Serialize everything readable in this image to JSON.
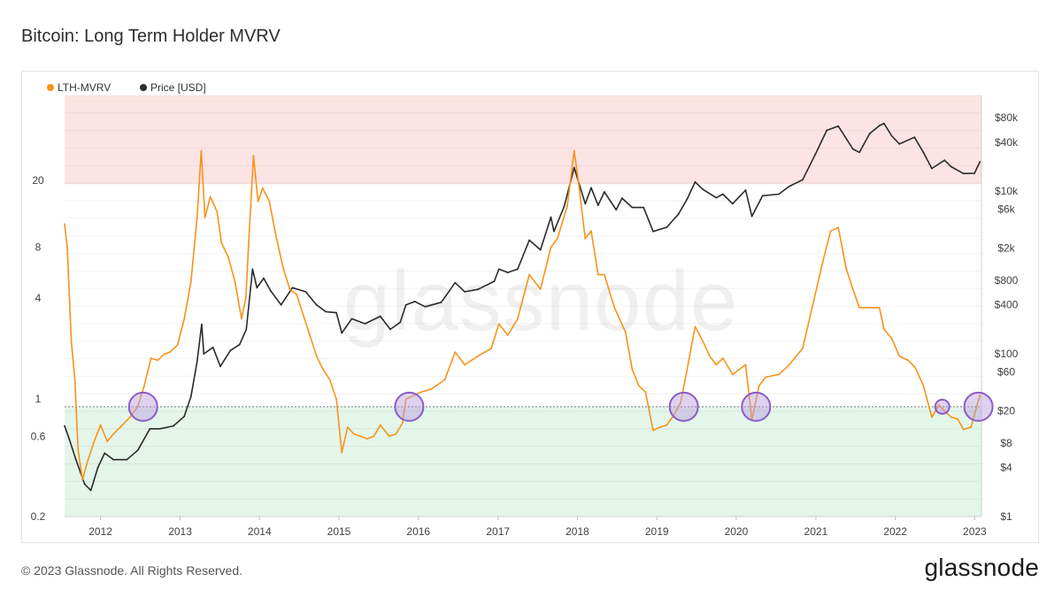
{
  "title": "Bitcoin: Long Term Holder MVRV",
  "footer": {
    "copyright": "© 2023 Glassnode. All Rights Reserved.",
    "logo": "glassnode"
  },
  "watermark": "glassnode",
  "colors": {
    "lth_mvrv": "#f7931a",
    "price": "#2b2b2b",
    "band_top": "#fde4e4",
    "band_bottom": "#e4f5ea",
    "marker": "#8a5cc7",
    "marker_fill": "#b89be0"
  },
  "chart_data": {
    "type": "line",
    "title": "Bitcoin: Long Term Holder MVRV",
    "legend": [
      "LTH-MVRV",
      "Price [USD]"
    ],
    "legend_position": "top-left",
    "x_ticks": [
      "2012",
      "2013",
      "2014",
      "2015",
      "2016",
      "2017",
      "2018",
      "2019",
      "2020",
      "2021",
      "2022",
      "2023"
    ],
    "xlim": [
      "2011-07-20",
      "2023-02-01"
    ],
    "left_axis": {
      "scale": "log",
      "ticks": [
        "0.2",
        "0.6",
        "1",
        "4",
        "8",
        "20"
      ],
      "tick_values": [
        0.2,
        0.6,
        1,
        4,
        8,
        20
      ],
      "ylim": [
        0.2,
        64
      ]
    },
    "right_axis": {
      "scale": "log",
      "ticks": [
        "$1",
        "$4",
        "$8",
        "$20",
        "$60",
        "$100",
        "$400",
        "$800",
        "$2k",
        "$6k",
        "$10k",
        "$40k",
        "$80k"
      ],
      "tick_values": [
        1,
        4,
        8,
        20,
        60,
        100,
        400,
        800,
        2000,
        6000,
        10000,
        40000,
        80000
      ],
      "ylim": [
        1,
        150000
      ]
    },
    "bands": [
      {
        "name": "upper",
        "from": 19,
        "to": 64
      },
      {
        "name": "lower",
        "from": 0.2,
        "to": 0.9
      }
    ],
    "reference_line": 0.9,
    "series": [
      {
        "name": "LTH-MVRV",
        "axis": "left",
        "points": [
          [
            "2011-07-20",
            11
          ],
          [
            "2011-08-01",
            8
          ],
          [
            "2011-08-20",
            2.2
          ],
          [
            "2011-09-05",
            1.3
          ],
          [
            "2011-09-20",
            0.5
          ],
          [
            "2011-10-10",
            0.33
          ],
          [
            "2011-11-01",
            0.42
          ],
          [
            "2011-12-01",
            0.55
          ],
          [
            "2012-01-01",
            0.7
          ],
          [
            "2012-02-01",
            0.56
          ],
          [
            "2012-03-01",
            0.62
          ],
          [
            "2012-04-01",
            0.68
          ],
          [
            "2012-05-15",
            0.78
          ],
          [
            "2012-06-20",
            0.9
          ],
          [
            "2012-07-20",
            1.2
          ],
          [
            "2012-08-20",
            1.75
          ],
          [
            "2012-09-20",
            1.7
          ],
          [
            "2012-10-20",
            1.85
          ],
          [
            "2012-11-15",
            1.9
          ],
          [
            "2012-12-20",
            2.1
          ],
          [
            "2013-01-20",
            3.0
          ],
          [
            "2013-02-20",
            5.0
          ],
          [
            "2013-03-20",
            12
          ],
          [
            "2013-04-08",
            30
          ],
          [
            "2013-04-25",
            12
          ],
          [
            "2013-05-20",
            16
          ],
          [
            "2013-06-20",
            13
          ],
          [
            "2013-07-10",
            8.5
          ],
          [
            "2013-08-10",
            7.0
          ],
          [
            "2013-09-10",
            5.0
          ],
          [
            "2013-10-10",
            3.0
          ],
          [
            "2013-10-30",
            4.0
          ],
          [
            "2013-11-15",
            10
          ],
          [
            "2013-12-04",
            28
          ],
          [
            "2013-12-25",
            15
          ],
          [
            "2014-01-15",
            18
          ],
          [
            "2014-02-15",
            15
          ],
          [
            "2014-03-20",
            9
          ],
          [
            "2014-04-20",
            6
          ],
          [
            "2014-05-20",
            4.5
          ],
          [
            "2014-06-20",
            4.2
          ],
          [
            "2014-07-20",
            3.2
          ],
          [
            "2014-08-20",
            2.4
          ],
          [
            "2014-09-20",
            1.8
          ],
          [
            "2014-10-20",
            1.5
          ],
          [
            "2014-11-20",
            1.3
          ],
          [
            "2014-12-20",
            1.0
          ],
          [
            "2015-01-14",
            0.48
          ],
          [
            "2015-02-10",
            0.68
          ],
          [
            "2015-03-10",
            0.62
          ],
          [
            "2015-04-10",
            0.6
          ],
          [
            "2015-05-10",
            0.58
          ],
          [
            "2015-06-10",
            0.6
          ],
          [
            "2015-07-10",
            0.7
          ],
          [
            "2015-08-20",
            0.6
          ],
          [
            "2015-09-20",
            0.62
          ],
          [
            "2015-10-20",
            0.72
          ],
          [
            "2015-11-05",
            1.0
          ],
          [
            "2015-12-10",
            1.05
          ],
          [
            "2016-01-15",
            1.1
          ],
          [
            "2016-03-01",
            1.15
          ],
          [
            "2016-05-01",
            1.3
          ],
          [
            "2016-06-18",
            1.9
          ],
          [
            "2016-08-01",
            1.6
          ],
          [
            "2016-10-01",
            1.8
          ],
          [
            "2016-12-01",
            2.0
          ],
          [
            "2017-01-05",
            2.8
          ],
          [
            "2017-02-15",
            2.4
          ],
          [
            "2017-04-01",
            3.0
          ],
          [
            "2017-05-25",
            5.5
          ],
          [
            "2017-07-15",
            4.5
          ],
          [
            "2017-09-01",
            8.0
          ],
          [
            "2017-10-01",
            9.0
          ],
          [
            "2017-11-15",
            14
          ],
          [
            "2017-12-17",
            30
          ],
          [
            "2018-01-05",
            20
          ],
          [
            "2018-02-06",
            9.0
          ],
          [
            "2018-03-05",
            10
          ],
          [
            "2018-04-06",
            5.5
          ],
          [
            "2018-05-05",
            5.5
          ],
          [
            "2018-06-20",
            3.5
          ],
          [
            "2018-08-10",
            2.5
          ],
          [
            "2018-09-10",
            1.5
          ],
          [
            "2018-10-10",
            1.2
          ],
          [
            "2018-11-10",
            1.1
          ],
          [
            "2018-12-15",
            0.65
          ],
          [
            "2019-01-15",
            0.68
          ],
          [
            "2019-02-15",
            0.7
          ],
          [
            "2019-03-20",
            0.8
          ],
          [
            "2019-04-20",
            0.95
          ],
          [
            "2019-05-20",
            1.5
          ],
          [
            "2019-06-26",
            2.7
          ],
          [
            "2019-08-01",
            2.2
          ],
          [
            "2019-09-01",
            1.8
          ],
          [
            "2019-10-01",
            1.6
          ],
          [
            "2019-11-01",
            1.75
          ],
          [
            "2019-12-15",
            1.4
          ],
          [
            "2020-02-13",
            1.6
          ],
          [
            "2020-03-13",
            0.75
          ],
          [
            "2020-04-15",
            1.2
          ],
          [
            "2020-05-15",
            1.35
          ],
          [
            "2020-07-15",
            1.4
          ],
          [
            "2020-09-01",
            1.6
          ],
          [
            "2020-11-01",
            2.0
          ],
          [
            "2020-12-15",
            3.5
          ],
          [
            "2021-02-01",
            6.5
          ],
          [
            "2021-03-10",
            10
          ],
          [
            "2021-04-14",
            10.5
          ],
          [
            "2021-05-20",
            6.0
          ],
          [
            "2021-06-20",
            4.5
          ],
          [
            "2021-07-20",
            3.5
          ],
          [
            "2021-09-05",
            3.5
          ],
          [
            "2021-10-20",
            3.5
          ],
          [
            "2021-11-10",
            2.6
          ],
          [
            "2021-12-15",
            2.3
          ],
          [
            "2022-01-20",
            1.8
          ],
          [
            "2022-03-01",
            1.7
          ],
          [
            "2022-04-01",
            1.55
          ],
          [
            "2022-05-10",
            1.2
          ],
          [
            "2022-06-18",
            0.78
          ],
          [
            "2022-07-20",
            0.92
          ],
          [
            "2022-08-15",
            0.85
          ],
          [
            "2022-09-15",
            0.78
          ],
          [
            "2022-10-15",
            0.76
          ],
          [
            "2022-11-10",
            0.66
          ],
          [
            "2022-12-15",
            0.68
          ],
          [
            "2023-01-15",
            0.95
          ],
          [
            "2023-01-25",
            1.05
          ]
        ]
      },
      {
        "name": "Price [USD]",
        "axis": "right",
        "points": [
          [
            "2011-07-20",
            13
          ],
          [
            "2011-08-10",
            9
          ],
          [
            "2011-09-10",
            5
          ],
          [
            "2011-10-20",
            2.5
          ],
          [
            "2011-11-18",
            2.1
          ],
          [
            "2011-12-20",
            4
          ],
          [
            "2012-01-20",
            6
          ],
          [
            "2012-03-01",
            5
          ],
          [
            "2012-05-01",
            5
          ],
          [
            "2012-06-20",
            6.5
          ],
          [
            "2012-08-15",
            12
          ],
          [
            "2012-10-01",
            12
          ],
          [
            "2012-12-01",
            13
          ],
          [
            "2013-01-20",
            17
          ],
          [
            "2013-02-20",
            30
          ],
          [
            "2013-03-20",
            80
          ],
          [
            "2013-04-10",
            230
          ],
          [
            "2013-04-20",
            100
          ],
          [
            "2013-06-01",
            120
          ],
          [
            "2013-07-05",
            70
          ],
          [
            "2013-08-20",
            110
          ],
          [
            "2013-10-01",
            130
          ],
          [
            "2013-11-01",
            200
          ],
          [
            "2013-11-30",
            1100
          ],
          [
            "2013-12-20",
            650
          ],
          [
            "2014-01-20",
            850
          ],
          [
            "2014-02-20",
            600
          ],
          [
            "2014-04-10",
            400
          ],
          [
            "2014-06-01",
            650
          ],
          [
            "2014-08-01",
            580
          ],
          [
            "2014-09-20",
            400
          ],
          [
            "2014-11-01",
            330
          ],
          [
            "2014-12-20",
            320
          ],
          [
            "2015-01-14",
            180
          ],
          [
            "2015-03-01",
            270
          ],
          [
            "2015-05-01",
            235
          ],
          [
            "2015-07-10",
            290
          ],
          [
            "2015-08-25",
            200
          ],
          [
            "2015-10-10",
            245
          ],
          [
            "2015-11-05",
            400
          ],
          [
            "2015-12-15",
            440
          ],
          [
            "2016-02-01",
            380
          ],
          [
            "2016-04-15",
            430
          ],
          [
            "2016-06-18",
            750
          ],
          [
            "2016-08-01",
            580
          ],
          [
            "2016-10-01",
            620
          ],
          [
            "2016-12-15",
            780
          ],
          [
            "2017-01-05",
            1100
          ],
          [
            "2017-02-15",
            1000
          ],
          [
            "2017-04-01",
            1100
          ],
          [
            "2017-05-25",
            2500
          ],
          [
            "2017-07-15",
            1900
          ],
          [
            "2017-09-01",
            4800
          ],
          [
            "2017-09-15",
            3200
          ],
          [
            "2017-11-01",
            6500
          ],
          [
            "2017-12-17",
            19500
          ],
          [
            "2018-02-06",
            7000
          ],
          [
            "2018-03-05",
            11000
          ],
          [
            "2018-04-06",
            6700
          ],
          [
            "2018-05-05",
            9800
          ],
          [
            "2018-06-28",
            5900
          ],
          [
            "2018-07-25",
            8200
          ],
          [
            "2018-09-10",
            6300
          ],
          [
            "2018-11-01",
            6300
          ],
          [
            "2018-12-15",
            3200
          ],
          [
            "2019-02-15",
            3600
          ],
          [
            "2019-04-10",
            5200
          ],
          [
            "2019-05-20",
            8000
          ],
          [
            "2019-06-26",
            13000
          ],
          [
            "2019-08-01",
            10500
          ],
          [
            "2019-10-01",
            8300
          ],
          [
            "2019-11-01",
            9200
          ],
          [
            "2019-12-15",
            7000
          ],
          [
            "2020-02-13",
            10300
          ],
          [
            "2020-03-13",
            4900
          ],
          [
            "2020-05-01",
            8800
          ],
          [
            "2020-07-15",
            9200
          ],
          [
            "2020-09-01",
            11500
          ],
          [
            "2020-11-01",
            13800
          ],
          [
            "2020-12-31",
            29000
          ],
          [
            "2021-02-20",
            56000
          ],
          [
            "2021-04-14",
            63000
          ],
          [
            "2021-06-20",
            33000
          ],
          [
            "2021-07-20",
            30000
          ],
          [
            "2021-09-05",
            51000
          ],
          [
            "2021-10-20",
            64000
          ],
          [
            "2021-11-10",
            68000
          ],
          [
            "2021-12-15",
            48000
          ],
          [
            "2022-01-20",
            38000
          ],
          [
            "2022-03-30",
            46000
          ],
          [
            "2022-05-10",
            30000
          ],
          [
            "2022-06-18",
            19000
          ],
          [
            "2022-08-15",
            24000
          ],
          [
            "2022-09-15",
            20000
          ],
          [
            "2022-11-10",
            16500
          ],
          [
            "2022-12-31",
            16600
          ],
          [
            "2023-01-25",
            23000
          ]
        ]
      }
    ],
    "highlight_markers": [
      {
        "date": "2012-07-15",
        "value": 0.9,
        "size": "large"
      },
      {
        "date": "2015-11-20",
        "value": 0.9,
        "size": "large"
      },
      {
        "date": "2019-05-05",
        "value": 0.9,
        "size": "large"
      },
      {
        "date": "2020-04-01",
        "value": 0.9,
        "size": "large"
      },
      {
        "date": "2022-08-05",
        "value": 0.9,
        "size": "small"
      },
      {
        "date": "2023-01-18",
        "value": 0.9,
        "size": "large"
      }
    ]
  }
}
